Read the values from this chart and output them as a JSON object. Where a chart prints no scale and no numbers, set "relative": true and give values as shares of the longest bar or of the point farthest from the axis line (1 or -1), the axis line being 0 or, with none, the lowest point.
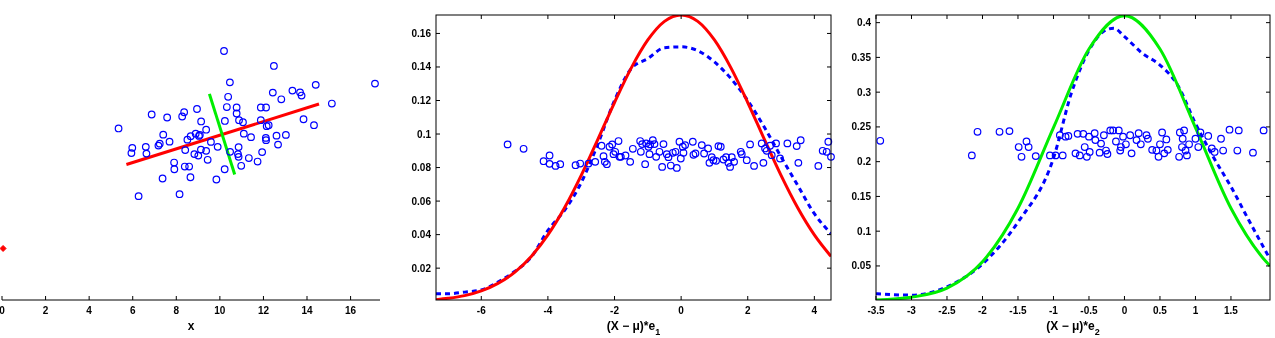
{
  "chart_data": [
    {
      "type": "scatter",
      "xlabel": "x",
      "relative": true,
      "xlim": [
        0,
        17.35
      ],
      "xticks": [
        0,
        2,
        4,
        6,
        8,
        10,
        12,
        14,
        16
      ],
      "series": [
        {
          "marker": "circle",
          "color": "#0000ff",
          "x": [
            10.19,
            12.48,
            10.46,
            14.4,
            17.12,
            12.43,
            13.33,
            13.68,
            13.75,
            12.82,
            10.38,
            15.14,
            10.32,
            10.77,
            11.88,
            12.12,
            8.95,
            8.36,
            8.27,
            6.87,
            7.58,
            10.77,
            10.23,
            9.14,
            11.06,
            10.88,
            13.84,
            14.32,
            5.35,
            9.37,
            12.15,
            12.24,
            11.88,
            8.89,
            9.08,
            8.66,
            7.4,
            13.03,
            12.6,
            11.43,
            11.1,
            12.11,
            12.12,
            8.51,
            7.69,
            7.24,
            7.18,
            6.6,
            5.98,
            9.59,
            9.9,
            10.47,
            10.86,
            12.67,
            8.41,
            9.13,
            9.37,
            10.83,
            10.86,
            5.94,
            6.63,
            9.01,
            11.33,
            11.94,
            11.73,
            9.44,
            7.9,
            7.91,
            8.39,
            8.59,
            10.98,
            10.22,
            7.37,
            8.65,
            9.84,
            8.15,
            6.27,
            8.83,
            9.04
          ],
          "values": [
            1.0,
            0.94,
            0.874,
            0.864,
            0.869,
            0.833,
            0.841,
            0.834,
            0.821,
            0.806,
            0.816,
            0.789,
            0.775,
            0.773,
            0.773,
            0.773,
            0.767,
            0.754,
            0.737,
            0.745,
            0.733,
            0.749,
            0.719,
            0.717,
            0.714,
            0.722,
            0.726,
            0.702,
            0.689,
            0.684,
            0.698,
            0.702,
            0.722,
            0.668,
            0.663,
            0.658,
            0.664,
            0.663,
            0.66,
            0.654,
            0.668,
            0.651,
            0.642,
            0.644,
            0.636,
            0.628,
            0.62,
            0.615,
            0.611,
            0.635,
            0.615,
            0.595,
            0.614,
            0.624,
            0.602,
            0.604,
            0.599,
            0.586,
            0.575,
            0.59,
            0.588,
            0.58,
            0.57,
            0.594,
            0.556,
            0.563,
            0.552,
            0.525,
            0.536,
            0.536,
            0.539,
            0.525,
            0.488,
            0.493,
            0.484,
            0.425,
            0.417,
            0.586,
            0.659
          ]
        },
        {
          "type": "line",
          "color": "#ff0000",
          "x": [
            5.71,
            14.55
          ],
          "values": [
            0.544,
            0.787
          ]
        },
        {
          "type": "line",
          "color": "#00ee00",
          "x": [
            9.52,
            10.68
          ],
          "values": [
            0.828,
            0.504
          ]
        },
        {
          "marker": "diamond",
          "color": "#ff0000",
          "x": [
            0.05
          ],
          "values": [
            0.207
          ]
        }
      ]
    },
    {
      "type": "scatter",
      "xlabel": "(X − μ)*e$_{1}$",
      "xlim": [
        -7.36,
        4.5
      ],
      "xticks": [
        -6,
        -4,
        -2,
        0,
        2,
        4
      ],
      "ylim": [
        0.001,
        0.171
      ],
      "yticks": [
        0.02,
        0.04,
        0.06,
        0.08,
        0.1,
        0.12,
        0.14,
        0.16
      ],
      "series": [
        {
          "marker": "circle",
          "color": "#0000ff",
          "x": [
            -5.21,
            -4.73,
            -4.13,
            -3.95,
            -3.95,
            -3.77,
            -3.63,
            -3.17,
            -3.03,
            -2.78,
            -2.58,
            -2.39,
            -2.33,
            -2.29,
            -2.23,
            -2.15,
            -2.07,
            -2.03,
            -1.98,
            -1.88,
            -1.85,
            -1.81,
            -1.67,
            -1.53,
            -1.45,
            -1.23,
            -1.21,
            -1.17,
            -1.08,
            -1.05,
            -0.98,
            -0.95,
            -0.93,
            -0.85,
            -0.8,
            -0.75,
            -0.65,
            -0.57,
            -0.53,
            -0.43,
            -0.38,
            -0.31,
            -0.25,
            -0.17,
            -0.13,
            -0.05,
            -0.01,
            0.05,
            0.07,
            0.12,
            0.35,
            0.37,
            0.43,
            0.62,
            0.69,
            0.81,
            0.85,
            0.92,
            0.97,
            1.05,
            1.12,
            1.19,
            1.27,
            1.35,
            1.42,
            1.47,
            1.52,
            1.59,
            1.79,
            1.82,
            1.97,
            2.07,
            2.19,
            2.42,
            2.47,
            2.52,
            2.57,
            2.67,
            2.72,
            2.85,
            2.97,
            3.19,
            3.47,
            3.52,
            3.59,
            4.12,
            4.25,
            4.42,
            4.5,
            4.37
          ],
          "values": [
            0.0938,
            0.0912,
            0.0838,
            0.0872,
            0.0822,
            0.081,
            0.082,
            0.0814,
            0.0824,
            0.0824,
            0.0834,
            0.093,
            0.0868,
            0.0834,
            0.082,
            0.0924,
            0.0938,
            0.088,
            0.0894,
            0.0958,
            0.0864,
            0.0864,
            0.0872,
            0.0834,
            0.0912,
            0.0958,
            0.0894,
            0.094,
            0.082,
            0.0944,
            0.0924,
            0.088,
            0.0938,
            0.0963,
            0.094,
            0.0864,
            0.0894,
            0.0804,
            0.094,
            0.088,
            0.0862,
            0.0812,
            0.0888,
            0.0894,
            0.0798,
            0.0954,
            0.0854,
            0.0924,
            0.0888,
            0.0934,
            0.0954,
            0.0876,
            0.0884,
            0.0934,
            0.0884,
            0.0914,
            0.0828,
            0.0862,
            0.0844,
            0.084,
            0.0928,
            0.0924,
            0.0848,
            0.0862,
            0.0828,
            0.0804,
            0.0862,
            0.0834,
            0.0894,
            0.088,
            0.0844,
            0.0938,
            0.081,
            0.0944,
            0.0828,
            0.0914,
            0.09,
            0.093,
            0.0874,
            0.0944,
            0.0854,
            0.0944,
            0.0928,
            0.0828,
            0.0963,
            0.081,
            0.09,
            0.0954,
            0.0864,
            0.0894
          ]
        },
        {
          "type": "line",
          "line_style": "dashed",
          "color": "#0000ff",
          "x": [
            -7.36,
            -7,
            -6.5,
            -6,
            -5.5,
            -5,
            -4.5,
            -4,
            -3.5,
            -3,
            -2.5,
            -2,
            -1.5,
            -1,
            -0.5,
            0,
            0.5,
            1,
            1.5,
            2,
            2.5,
            3,
            3.5,
            4,
            4.5
          ],
          "values": [
            0.0047,
            0.0047,
            0.0057,
            0.007,
            0.0117,
            0.018,
            0.0266,
            0.0425,
            0.0545,
            0.071,
            0.094,
            0.12,
            0.139,
            0.145,
            0.1515,
            0.152,
            0.1497,
            0.143,
            0.133,
            0.12,
            0.104,
            0.0864,
            0.0694,
            0.0525,
            0.0406
          ]
        },
        {
          "type": "line",
          "color": "#ff0000",
          "x": [
            -7.36,
            -7,
            -6.5,
            -6,
            -5.5,
            -5,
            -4.5,
            -4,
            -3.5,
            -3,
            -2.5,
            -2,
            -1.5,
            -1,
            -0.5,
            0,
            0.5,
            1,
            1.5,
            2,
            2.5,
            3,
            3.5,
            4,
            4.5
          ],
          "values": [
            0.0012,
            0.002,
            0.0036,
            0.0064,
            0.0109,
            0.0175,
            0.027,
            0.0398,
            0.056,
            0.0753,
            0.0968,
            0.1188,
            0.1393,
            0.1561,
            0.1672,
            0.171,
            0.1672,
            0.1561,
            0.1393,
            0.1188,
            0.0968,
            0.0753,
            0.056,
            0.0398,
            0.027
          ]
        }
      ]
    },
    {
      "type": "scatter",
      "xlabel": "(X − μ)*e$_{2}$",
      "xlim": [
        -3.5,
        2.05
      ],
      "xticks": [
        -3.5,
        -3,
        -2.5,
        -2,
        -1.5,
        -1,
        -0.5,
        0,
        0.5,
        1,
        1.5
      ],
      "ylim": [
        0.001,
        0.411
      ],
      "yticks": [
        0.05,
        0.1,
        0.15,
        0.2,
        0.25,
        0.3,
        0.35,
        0.4
      ],
      "series": [
        {
          "marker": "circle",
          "color": "#0000ff",
          "x": [
            -3.44,
            -2.15,
            -2.07,
            -1.76,
            -1.62,
            -1.49,
            -1.45,
            -1.38,
            -1.35,
            -1.25,
            -1.05,
            -0.97,
            -0.91,
            -0.87,
            -0.83,
            -0.79,
            -0.69,
            -0.66,
            -0.63,
            -0.58,
            -0.56,
            -0.53,
            -0.5,
            -0.49,
            -0.42,
            -0.41,
            -0.35,
            -0.33,
            -0.29,
            -0.26,
            -0.24,
            -0.2,
            -0.16,
            -0.12,
            -0.08,
            -0.06,
            -0.05,
            -0.02,
            0.02,
            0.08,
            0.1,
            0.17,
            0.2,
            0.23,
            0.31,
            0.33,
            0.39,
            0.45,
            0.48,
            0.5,
            0.53,
            0.56,
            0.59,
            0.61,
            0.77,
            0.78,
            0.81,
            0.82,
            0.84,
            0.86,
            0.88,
            0.91,
            1.0,
            1.04,
            1.07,
            1.18,
            1.23,
            1.27,
            1.36,
            1.39,
            1.48,
            1.59,
            1.61,
            1.81,
            1.96
          ],
          "values": [
            0.23,
            0.209,
            0.243,
            0.243,
            0.244,
            0.221,
            0.207,
            0.229,
            0.221,
            0.208,
            0.209,
            0.209,
            0.238,
            0.209,
            0.236,
            0.237,
            0.212,
            0.24,
            0.209,
            0.24,
            0.221,
            0.207,
            0.236,
            0.214,
            0.241,
            0.231,
            0.213,
            0.226,
            0.238,
            0.216,
            0.211,
            0.245,
            0.245,
            0.229,
            0.245,
            0.216,
            0.221,
            0.236,
            0.225,
            0.238,
            0.212,
            0.231,
            0.241,
            0.225,
            0.238,
            0.233,
            0.217,
            0.216,
            0.207,
            0.225,
            0.242,
            0.212,
            0.232,
            0.217,
            0.207,
            0.242,
            0.221,
            0.233,
            0.245,
            0.216,
            0.209,
            0.225,
            0.233,
            0.221,
            0.242,
            0.237,
            0.219,
            0.214,
            0.233,
            0.216,
            0.246,
            0.216,
            0.245,
            0.213,
            0.245
          ]
        },
        {
          "type": "line",
          "line_style": "dashed",
          "color": "#0000ff",
          "x": [
            -3.5,
            -3,
            -2.5,
            -2,
            -1.5,
            -1,
            -0.75,
            -0.5,
            -0.25,
            -0.15,
            0,
            0.25,
            0.5,
            0.75,
            1,
            1.25,
            1.5,
            1.75,
            2.05
          ],
          "values": [
            0.01,
            0.008,
            0.02,
            0.053,
            0.113,
            0.205,
            0.298,
            0.36,
            0.39,
            0.392,
            0.38,
            0.356,
            0.339,
            0.31,
            0.255,
            0.207,
            0.164,
            0.116,
            0.06
          ]
        },
        {
          "type": "line",
          "color": "#00ee00",
          "x": [
            -3.5,
            -3,
            -2.5,
            -2,
            -1.5,
            -1,
            -0.5,
            0,
            0.5,
            1,
            1.5,
            2,
            2.05
          ],
          "values": [
            0.001,
            0.005,
            0.018,
            0.056,
            0.133,
            0.249,
            0.362,
            0.41,
            0.362,
            0.249,
            0.133,
            0.0555,
            0.05
          ]
        }
      ]
    }
  ]
}
